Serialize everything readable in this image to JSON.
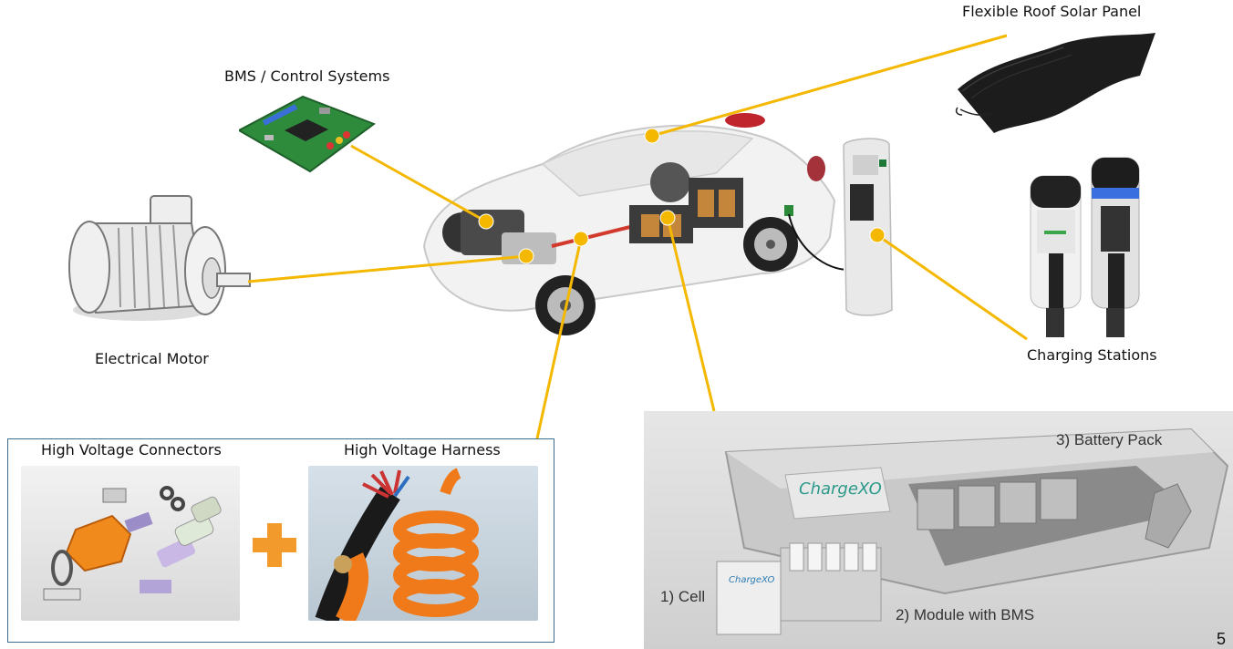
{
  "labels": {
    "solar": "Flexible Roof Solar Panel",
    "bms": "BMS / Control Systems",
    "motor": "Electrical Motor",
    "charging": "Charging Stations",
    "hv_connectors": "High Voltage Connectors",
    "hv_harness": "High Voltage Harness"
  },
  "battery": {
    "pack": "3) Battery Pack",
    "cell": "1) Cell",
    "module": "2) Module with BMS",
    "brand": "ChargeXO",
    "brand_small": "ChargeXO"
  },
  "page_number": "5",
  "colors": {
    "connector_line": "#f5b800",
    "dot_fill": "#f5b800",
    "box_border": "#3b6d8f",
    "orange_plus": "#f39a2c",
    "pcb_green": "#2e8b3c"
  }
}
